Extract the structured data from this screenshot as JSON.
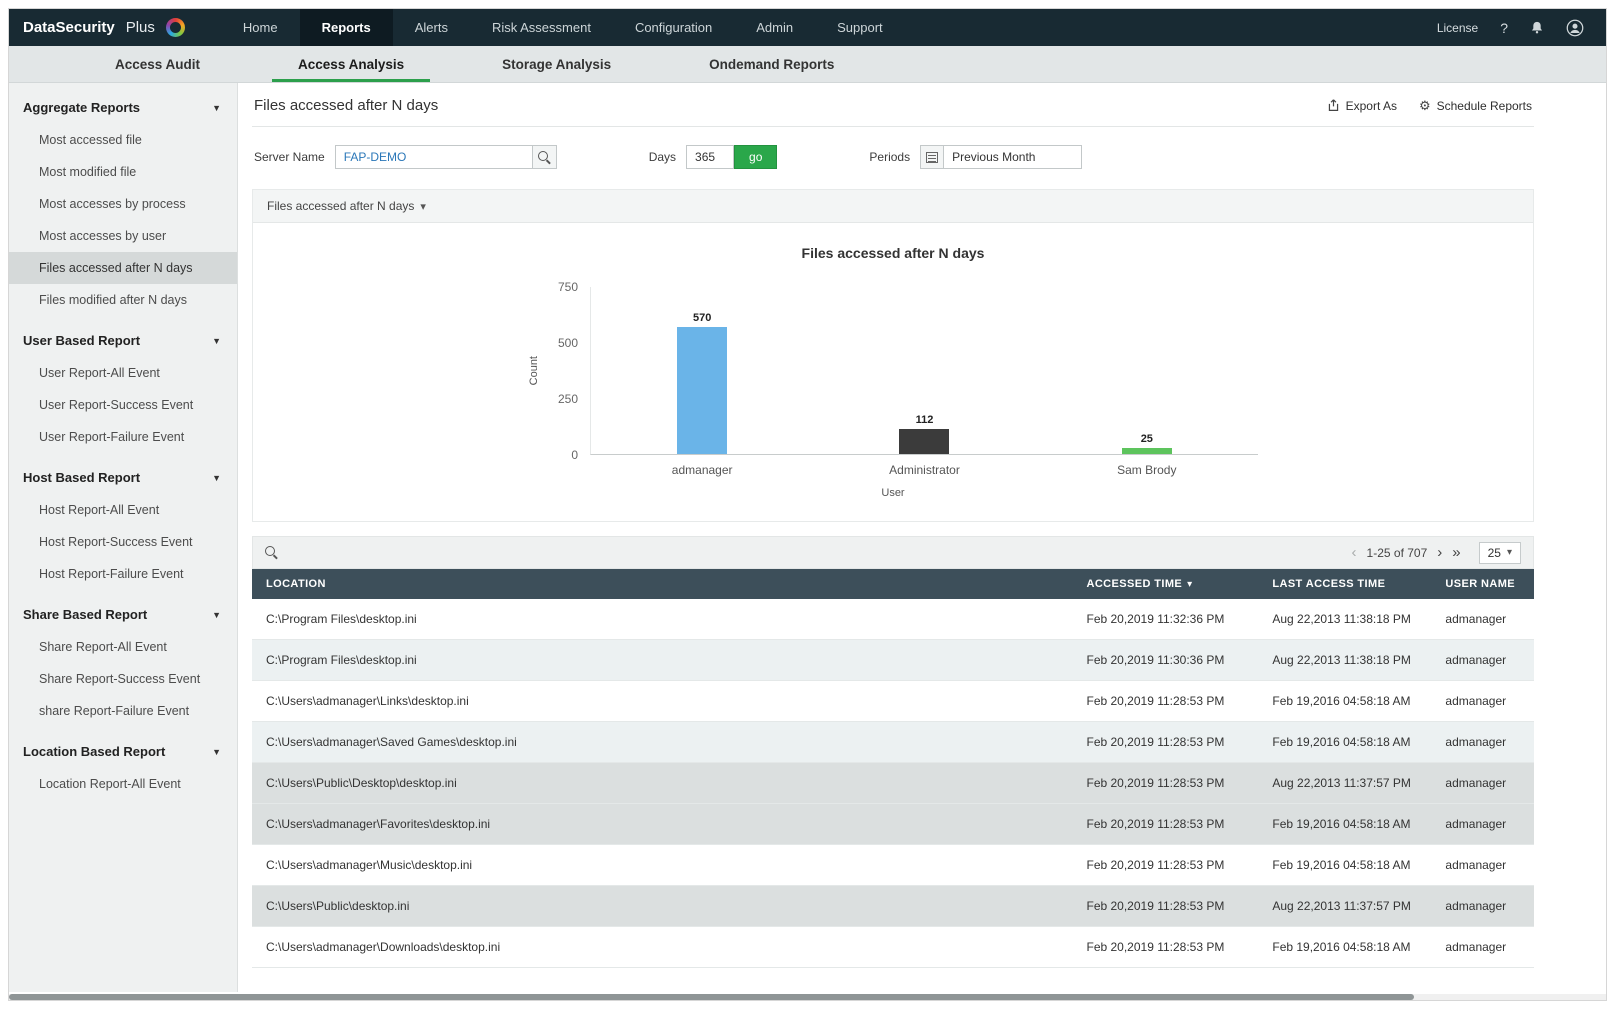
{
  "navbar": {
    "brand_primary": "DataSecurity",
    "brand_secondary": "Plus",
    "items": [
      {
        "label": "Home"
      },
      {
        "label": "Reports",
        "active": true
      },
      {
        "label": "Alerts"
      },
      {
        "label": "Risk Assessment"
      },
      {
        "label": "Configuration"
      },
      {
        "label": "Admin"
      },
      {
        "label": "Support"
      }
    ],
    "license_label": "License",
    "help_label": "?"
  },
  "tabs": [
    {
      "label": "Access Audit"
    },
    {
      "label": "Access Analysis",
      "active": true
    },
    {
      "label": "Storage Analysis"
    },
    {
      "label": "Ondemand Reports"
    }
  ],
  "sidebar": {
    "entries": [
      {
        "label": "Aggregate Reports",
        "section": true
      },
      {
        "label": "Most accessed file"
      },
      {
        "label": "Most modified file"
      },
      {
        "label": "Most accesses by process"
      },
      {
        "label": "Most accesses by user"
      },
      {
        "label": "Files accessed after N days",
        "selected": true
      },
      {
        "label": "Files modified after N days"
      },
      {
        "label": "User Based Report",
        "section": true
      },
      {
        "label": "User Report-All Event"
      },
      {
        "label": "User Report-Success Event"
      },
      {
        "label": "User Report-Failure Event"
      },
      {
        "label": "Host Based Report",
        "section": true
      },
      {
        "label": "Host Report-All Event"
      },
      {
        "label": "Host Report-Success Event"
      },
      {
        "label": "Host Report-Failure Event"
      },
      {
        "label": "Share Based Report",
        "section": true
      },
      {
        "label": "Share Report-All Event"
      },
      {
        "label": "Share Report-Success Event"
      },
      {
        "label": "share Report-Failure Event"
      },
      {
        "label": "Location Based Report",
        "section": true
      },
      {
        "label": "Location Report-All Event"
      }
    ]
  },
  "page_header": {
    "title": "Files accessed after N days",
    "export_label": "Export As",
    "schedule_label": "Schedule Reports"
  },
  "filters": {
    "server_label": "Server Name",
    "server_value": "FAP-DEMO",
    "days_label": "Days",
    "days_value": "365",
    "go_label": "go",
    "periods_label": "Periods",
    "periods_value": "Previous Month"
  },
  "chart_data": {
    "type": "bar",
    "selector_label": "Files accessed after N days",
    "title": "Files accessed after N days",
    "categories": [
      "admanager",
      "Administrator",
      "Sam Brody"
    ],
    "values": [
      570,
      112,
      25
    ],
    "colors": [
      "#6ab4e8",
      "#3b3b3b",
      "#5dc45d"
    ],
    "xlabel": "User",
    "ylabel": "Count",
    "ylim": [
      0,
      750
    ],
    "yticks": [
      0,
      250,
      500,
      750
    ],
    "legend": "none",
    "grid": false
  },
  "table": {
    "toolbar": {
      "range": "1-25 of 707",
      "page_size": "25"
    },
    "columns": [
      {
        "label": "LOCATION"
      },
      {
        "label": "ACCESSED TIME",
        "sorted": true
      },
      {
        "label": "LAST ACCESS TIME"
      },
      {
        "label": "USER NAME"
      }
    ],
    "rows": [
      {
        "location": "C:\\Program Files\\desktop.ini",
        "accessed": "Feb 20,2019 11:32:36 PM",
        "last_access": "Aug 22,2013 11:38:18 PM",
        "user": "admanager"
      },
      {
        "location": "C:\\Program Files\\desktop.ini",
        "accessed": "Feb 20,2019 11:30:36 PM",
        "last_access": "Aug 22,2013 11:38:18 PM",
        "user": "admanager"
      },
      {
        "location": "C:\\Users\\admanager\\Links\\desktop.ini",
        "accessed": "Feb 20,2019 11:28:53 PM",
        "last_access": "Feb 19,2016 04:58:18 AM",
        "user": "admanager"
      },
      {
        "location": "C:\\Users\\admanager\\Saved Games\\desktop.ini",
        "accessed": "Feb 20,2019 11:28:53 PM",
        "last_access": "Feb 19,2016 04:58:18 AM",
        "user": "admanager"
      },
      {
        "location": "C:\\Users\\Public\\Desktop\\desktop.ini",
        "accessed": "Feb 20,2019 11:28:53 PM",
        "last_access": "Aug 22,2013 11:37:57 PM",
        "user": "admanager"
      },
      {
        "location": "C:\\Users\\admanager\\Favorites\\desktop.ini",
        "accessed": "Feb 20,2019 11:28:53 PM",
        "last_access": "Feb 19,2016 04:58:18 AM",
        "user": "admanager"
      },
      {
        "location": "C:\\Users\\admanager\\Music\\desktop.ini",
        "accessed": "Feb 20,2019 11:28:53 PM",
        "last_access": "Feb 19,2016 04:58:18 AM",
        "user": "admanager"
      },
      {
        "location": "C:\\Users\\Public\\desktop.ini",
        "accessed": "Feb 20,2019 11:28:53 PM",
        "last_access": "Aug 22,2013 11:37:57 PM",
        "user": "admanager"
      },
      {
        "location": "C:\\Users\\admanager\\Downloads\\desktop.ini",
        "accessed": "Feb 20,2019 11:28:53 PM",
        "last_access": "Feb 19,2016 04:58:18 AM",
        "user": "admanager"
      }
    ]
  }
}
